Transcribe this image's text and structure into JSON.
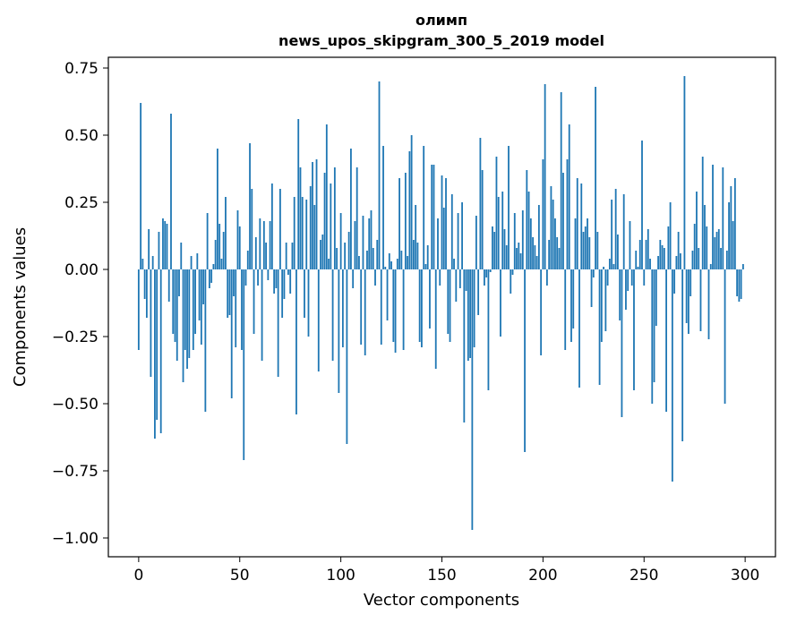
{
  "chart_data": {
    "type": "bar",
    "title": "олимп",
    "subtitle": "news_upos_skipgram_300_5_2019 model",
    "xlabel": "Vector components",
    "ylabel": "Components values",
    "xlim": [
      -15,
      315
    ],
    "ylim": [
      -1.07,
      0.79
    ],
    "xticks": [
      0,
      50,
      100,
      150,
      200,
      250,
      300
    ],
    "yticks": [
      -1.0,
      -0.75,
      -0.5,
      -0.25,
      0.0,
      0.25,
      0.5,
      0.75
    ],
    "ytick_labels": [
      "−1.00",
      "−0.75",
      "−0.50",
      "−0.25",
      "0.00",
      "0.25",
      "0.50",
      "0.75"
    ],
    "bar_color": "#1f77b4",
    "grid": false,
    "x": [
      0,
      1,
      2,
      3,
      4,
      5,
      6,
      7,
      8,
      9,
      10,
      11,
      12,
      13,
      14,
      15,
      16,
      17,
      18,
      19,
      20,
      21,
      22,
      23,
      24,
      25,
      26,
      27,
      28,
      29,
      30,
      31,
      32,
      33,
      34,
      35,
      36,
      37,
      38,
      39,
      40,
      41,
      42,
      43,
      44,
      45,
      46,
      47,
      48,
      49,
      50,
      51,
      52,
      53,
      54,
      55,
      56,
      57,
      58,
      59,
      60,
      61,
      62,
      63,
      64,
      65,
      66,
      67,
      68,
      69,
      70,
      71,
      72,
      73,
      74,
      75,
      76,
      77,
      78,
      79,
      80,
      81,
      82,
      83,
      84,
      85,
      86,
      87,
      88,
      89,
      90,
      91,
      92,
      93,
      94,
      95,
      96,
      97,
      98,
      99,
      100,
      101,
      102,
      103,
      104,
      105,
      106,
      107,
      108,
      109,
      110,
      111,
      112,
      113,
      114,
      115,
      116,
      117,
      118,
      119,
      120,
      121,
      122,
      123,
      124,
      125,
      126,
      127,
      128,
      129,
      130,
      131,
      132,
      133,
      134,
      135,
      136,
      137,
      138,
      139,
      140,
      141,
      142,
      143,
      144,
      145,
      146,
      147,
      148,
      149,
      150,
      151,
      152,
      153,
      154,
      155,
      156,
      157,
      158,
      159,
      160,
      161,
      162,
      163,
      164,
      165,
      166,
      167,
      168,
      169,
      170,
      171,
      172,
      173,
      174,
      175,
      176,
      177,
      178,
      179,
      180,
      181,
      182,
      183,
      184,
      185,
      186,
      187,
      188,
      189,
      190,
      191,
      192,
      193,
      194,
      195,
      196,
      197,
      198,
      199,
      200,
      201,
      202,
      203,
      204,
      205,
      206,
      207,
      208,
      209,
      210,
      211,
      212,
      213,
      214,
      215,
      216,
      217,
      218,
      219,
      220,
      221,
      222,
      223,
      224,
      225,
      226,
      227,
      228,
      229,
      230,
      231,
      232,
      233,
      234,
      235,
      236,
      237,
      238,
      239,
      240,
      241,
      242,
      243,
      244,
      245,
      246,
      247,
      248,
      249,
      250,
      251,
      252,
      253,
      254,
      255,
      256,
      257,
      258,
      259,
      260,
      261,
      262,
      263,
      264,
      265,
      266,
      267,
      268,
      269,
      270,
      271,
      272,
      273,
      274,
      275,
      276,
      277,
      278,
      279,
      280,
      281,
      282,
      283,
      284,
      285,
      286,
      287,
      288,
      289,
      290,
      291,
      292,
      293,
      294,
      295,
      296,
      297,
      298,
      299
    ],
    "values": [
      -0.3,
      0.62,
      0.04,
      -0.11,
      -0.18,
      0.15,
      -0.4,
      0.05,
      -0.63,
      -0.56,
      0.14,
      -0.61,
      0.19,
      0.18,
      0.17,
      -0.12,
      0.58,
      -0.24,
      -0.27,
      -0.34,
      -0.1,
      0.1,
      -0.42,
      -0.3,
      -0.37,
      -0.33,
      0.05,
      -0.3,
      -0.24,
      0.06,
      -0.19,
      -0.28,
      -0.13,
      -0.53,
      0.21,
      -0.07,
      -0.05,
      0.02,
      0.11,
      0.45,
      0.17,
      0.04,
      0.14,
      0.27,
      -0.18,
      -0.17,
      -0.48,
      -0.1,
      -0.29,
      0.22,
      0.16,
      -0.3,
      -0.71,
      -0.06,
      0.07,
      0.47,
      0.3,
      -0.24,
      0.12,
      -0.06,
      0.19,
      -0.34,
      0.18,
      0.1,
      -0.04,
      0.18,
      0.32,
      -0.09,
      -0.07,
      -0.4,
      0.3,
      -0.18,
      -0.11,
      0.1,
      -0.02,
      -0.09,
      0.1,
      0.27,
      -0.54,
      0.56,
      0.38,
      0.27,
      -0.18,
      0.26,
      -0.25,
      0.31,
      0.4,
      0.24,
      0.41,
      -0.38,
      0.11,
      0.13,
      0.36,
      0.54,
      0.04,
      0.32,
      -0.34,
      0.38,
      0.08,
      -0.46,
      0.21,
      -0.29,
      0.1,
      -0.65,
      0.14,
      0.45,
      -0.07,
      0.18,
      0.38,
      0.05,
      -0.28,
      0.2,
      -0.32,
      0.07,
      0.19,
      0.22,
      0.08,
      -0.06,
      0.11,
      0.7,
      -0.28,
      0.46,
      0.01,
      -0.19,
      0.06,
      0.03,
      -0.27,
      -0.31,
      0.04,
      0.34,
      0.07,
      -0.3,
      0.36,
      0.05,
      0.44,
      0.5,
      0.11,
      0.24,
      0.1,
      -0.27,
      -0.29,
      0.46,
      0.02,
      0.09,
      -0.22,
      0.39,
      0.39,
      -0.37,
      0.19,
      -0.06,
      0.35,
      0.23,
      0.34,
      -0.24,
      -0.27,
      0.28,
      0.04,
      -0.12,
      0.21,
      -0.07,
      0.25,
      -0.57,
      -0.08,
      -0.34,
      -0.33,
      -0.97,
      -0.29,
      0.2,
      -0.17,
      0.49,
      0.37,
      -0.06,
      -0.03,
      -0.45,
      -0.01,
      0.16,
      0.14,
      0.42,
      0.27,
      -0.25,
      0.29,
      0.15,
      0.09,
      0.46,
      -0.09,
      -0.02,
      0.21,
      0.08,
      0.1,
      0.06,
      0.22,
      -0.68,
      0.37,
      0.29,
      0.19,
      0.12,
      0.09,
      0.05,
      0.24,
      -0.32,
      0.41,
      0.69,
      -0.06,
      0.11,
      0.31,
      0.26,
      0.19,
      0.12,
      0.08,
      0.66,
      0.36,
      -0.3,
      0.41,
      0.54,
      -0.27,
      -0.22,
      0.19,
      0.34,
      -0.44,
      0.32,
      0.14,
      0.16,
      0.19,
      0.12,
      -0.14,
      -0.03,
      0.68,
      0.14,
      -0.43,
      -0.27,
      0.01,
      -0.23,
      -0.06,
      0.04,
      0.26,
      0.02,
      0.3,
      0.13,
      -0.19,
      -0.55,
      0.28,
      -0.15,
      -0.08,
      0.18,
      -0.06,
      -0.45,
      0.07,
      0.01,
      0.11,
      0.48,
      -0.06,
      0.11,
      0.15,
      0.04,
      -0.5,
      -0.42,
      -0.21,
      0.05,
      0.11,
      0.09,
      0.08,
      -0.53,
      0.16,
      0.25,
      -0.79,
      -0.09,
      0.05,
      0.14,
      0.06,
      -0.64,
      0.72,
      -0.2,
      -0.24,
      -0.1,
      0.07,
      0.17,
      0.29,
      0.08,
      -0.23,
      0.42,
      0.24,
      0.16,
      -0.26,
      0.02,
      0.39,
      0.12,
      0.14,
      0.15,
      0.08,
      0.38,
      -0.5,
      0.07,
      0.25,
      0.31,
      0.18,
      0.34,
      -0.1,
      -0.12,
      -0.11,
      0.02
    ]
  }
}
